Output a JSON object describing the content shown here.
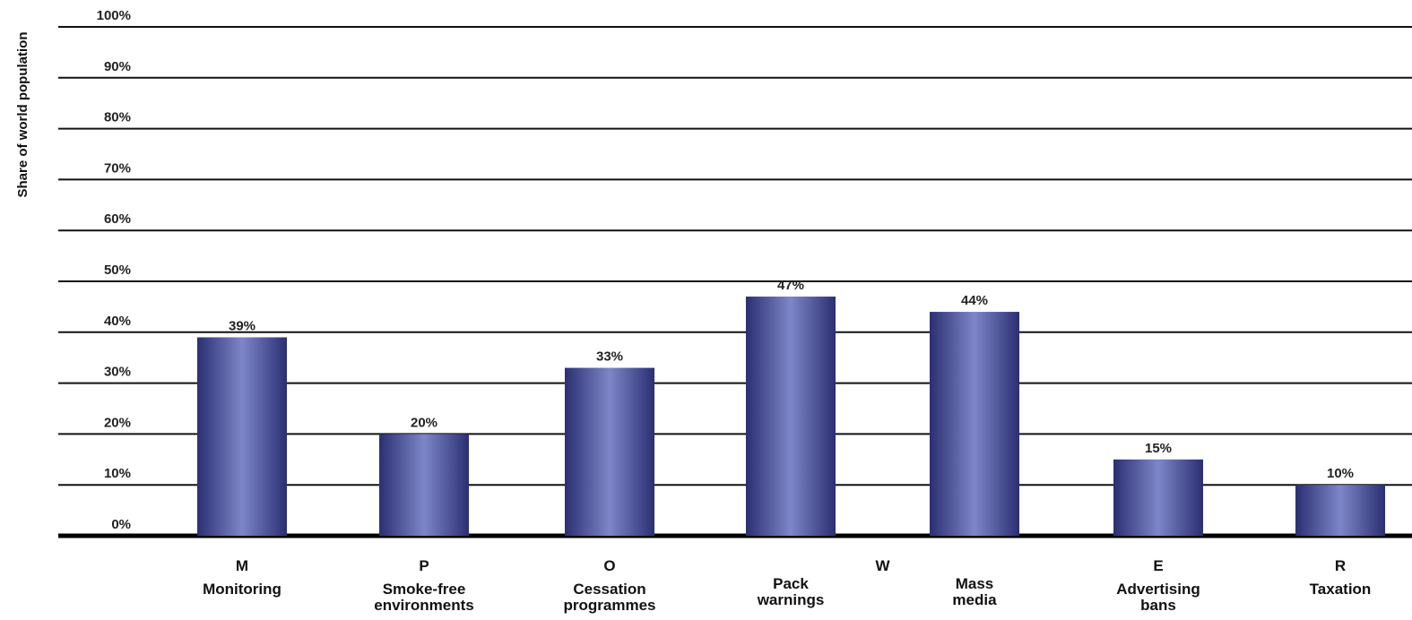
{
  "chart_data": {
    "type": "bar",
    "title": "",
    "xlabel": "",
    "ylabel": "Share of world population",
    "ylim": [
      0,
      100
    ],
    "yticks": [
      0,
      10,
      20,
      30,
      40,
      50,
      60,
      70,
      80,
      90,
      100
    ],
    "ytick_labels": [
      "0%",
      "10%",
      "20%",
      "30%",
      "40%",
      "50%",
      "60%",
      "70%",
      "80%",
      "90%",
      "100%"
    ],
    "grid": true,
    "colors": {
      "bar_dark": "#2a2f72",
      "bar_light": "#7d86c8",
      "grid": "#111111",
      "baseline": "#000000"
    },
    "categories": [
      {
        "letter": "M",
        "lines": [
          "Monitoring"
        ],
        "value": 39,
        "label": "39%"
      },
      {
        "letter": "P",
        "lines": [
          "Smoke-free",
          "environments"
        ],
        "value": 20,
        "label": "20%"
      },
      {
        "letter": "O",
        "lines": [
          "Cessation",
          "programmes"
        ],
        "value": 33,
        "label": "33%"
      },
      {
        "letter": "",
        "lines": [
          "Pack",
          "warnings"
        ],
        "value": 47,
        "label": "47%"
      },
      {
        "letter": "",
        "lines": [
          "Mass",
          "media"
        ],
        "value": 44,
        "label": "44%"
      },
      {
        "letter": "E",
        "lines": [
          "Advertising",
          "bans"
        ],
        "value": 15,
        "label": "15%"
      },
      {
        "letter": "R",
        "lines": [
          "Taxation"
        ],
        "value": 10,
        "label": "10%"
      }
    ],
    "group_labels": [
      {
        "letter": "W",
        "spans": [
          "Pack warnings",
          "Mass media"
        ]
      }
    ]
  }
}
